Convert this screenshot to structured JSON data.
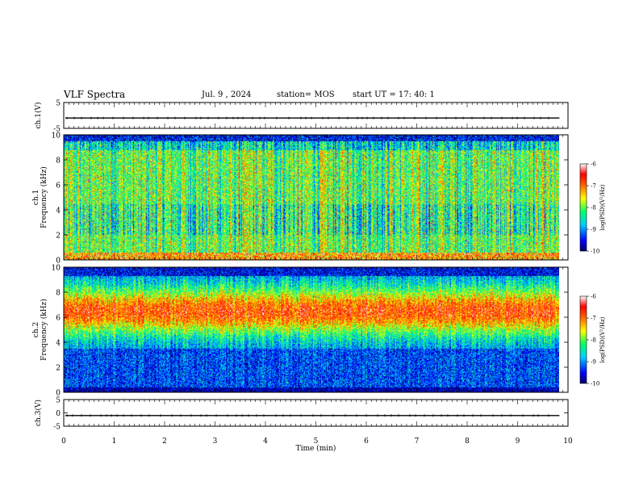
{
  "header": {
    "title": "VLF Spectra",
    "date": "Jul. 9 , 2024",
    "station": "station= MOS",
    "start_ut": "start UT = 17: 40: 1"
  },
  "colors": {
    "scale": [
      "#000066",
      "#0000ff",
      "#00ccff",
      "#00ff66",
      "#ffff00",
      "#ff6600",
      "#ff0000",
      "#ffffff"
    ],
    "trace": "#000000"
  },
  "chart_data": [
    {
      "type": "line",
      "panel": "ch1-voltage",
      "ylabel": "ch.1(V)",
      "ylim": [
        -5,
        5
      ],
      "yticks": [
        "5",
        "-5"
      ],
      "series": [
        {
          "values": [
            -1,
            -1,
            -1,
            -1,
            -1,
            -1,
            -1,
            -1,
            -1,
            -1,
            -1
          ]
        }
      ],
      "x": [
        0,
        1,
        2,
        3,
        4,
        5,
        6,
        7,
        8,
        9,
        10
      ]
    },
    {
      "type": "heatmap",
      "panel": "ch1-spectrogram",
      "ylabel": "ch.1\nFrequency (kHz)",
      "ylim": [
        0,
        10
      ],
      "yticks": [
        "0",
        "2",
        "4",
        "6",
        "8",
        "10"
      ],
      "colorbar": {
        "label": "log(PSD)(V²/Hz)",
        "ticks": [
          "-6",
          "-7",
          "-8",
          "-9",
          "-10"
        ],
        "range": [
          -10,
          -6
        ]
      },
      "band_peak_khz": [
        0.5,
        9.2
      ],
      "mean_level": -8.0
    },
    {
      "type": "heatmap",
      "panel": "ch2-spectrogram",
      "ylabel": "ch.2\nFrequency (kHz)",
      "ylim": [
        0,
        10
      ],
      "yticks": [
        "0",
        "2",
        "4",
        "6",
        "8",
        "10"
      ],
      "colorbar": {
        "label": "log(PSD)(V²/Hz)",
        "ticks": [
          "-6",
          "-7",
          "-8",
          "-9",
          "-10"
        ],
        "range": [
          -10,
          -6
        ]
      },
      "band_peak_khz": [
        5,
        8
      ],
      "mean_level": -7.6
    },
    {
      "type": "line",
      "panel": "ch3-voltage",
      "ylabel": "ch.3(V)",
      "ylim": [
        -5,
        5
      ],
      "yticks": [
        "5",
        "0",
        "-5"
      ],
      "series": [
        {
          "values": [
            -1,
            -1,
            -1,
            -1,
            -1,
            -1,
            -1,
            -1,
            -1,
            -1,
            -1
          ]
        }
      ],
      "x": [
        0,
        1,
        2,
        3,
        4,
        5,
        6,
        7,
        8,
        9,
        10
      ]
    }
  ],
  "xaxis": {
    "label": "Time (min)",
    "ticks": [
      "0",
      "1",
      "2",
      "3",
      "4",
      "5",
      "6",
      "7",
      "8",
      "9",
      "10"
    ],
    "range": [
      0,
      10
    ],
    "data_end": 9.83
  }
}
